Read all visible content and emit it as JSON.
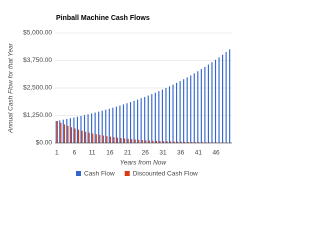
{
  "chart_data": {
    "type": "bar",
    "title": "Pinball Machine Cash Flows",
    "x_label": "Years from Now",
    "y_label": "Annual Cash Flow for that Year",
    "categories": [
      "1",
      null,
      null,
      null,
      null,
      "6",
      null,
      null,
      null,
      null,
      "11",
      null,
      null,
      null,
      null,
      "16",
      null,
      null,
      null,
      null,
      "21",
      null,
      null,
      null,
      null,
      "26",
      null,
      null,
      null,
      null,
      "31",
      null,
      null,
      null,
      null,
      "36",
      null,
      null,
      null,
      null,
      "41",
      null,
      null,
      null,
      null,
      "46",
      null,
      null,
      null,
      null
    ],
    "series": [
      {
        "name": "Cash Flow",
        "color": "#3366cc",
        "values": [
          1000,
          1030,
          1061,
          1093,
          1126,
          1159,
          1194,
          1230,
          1267,
          1305,
          1344,
          1384,
          1426,
          1469,
          1513,
          1558,
          1605,
          1653,
          1702,
          1754,
          1806,
          1860,
          1916,
          1974,
          2033,
          2094,
          2157,
          2221,
          2288,
          2357,
          2427,
          2500,
          2575,
          2652,
          2732,
          2814,
          2898,
          2985,
          3075,
          3167,
          3262,
          3360,
          3461,
          3564,
          3671,
          3782,
          3895,
          4012,
          4132,
          4256
        ]
      },
      {
        "name": "Discounted Cash Flow",
        "color": "#dc3912",
        "values": [
          1000,
          920,
          846,
          779,
          716,
          659,
          606,
          558,
          513,
          472,
          434,
          400,
          368,
          338,
          311,
          286,
          263,
          242,
          223,
          205,
          189,
          174,
          160,
          147,
          135,
          124,
          114,
          105,
          97,
          89,
          82,
          75,
          69,
          64,
          59,
          54,
          50,
          46,
          42,
          39,
          36,
          33,
          30,
          28,
          26,
          24,
          22,
          20,
          18,
          17
        ]
      }
    ],
    "ylim": [
      0,
      5000
    ],
    "yticks": [
      {
        "value": 0,
        "label": "$0.00"
      },
      {
        "value": 1250,
        "label": "$1,250.00"
      },
      {
        "value": 2500,
        "label": "$2,500.00"
      },
      {
        "value": 3750,
        "label": "$3,750.00"
      },
      {
        "value": 5000,
        "label": "$5,000.00"
      }
    ],
    "grid": true
  }
}
